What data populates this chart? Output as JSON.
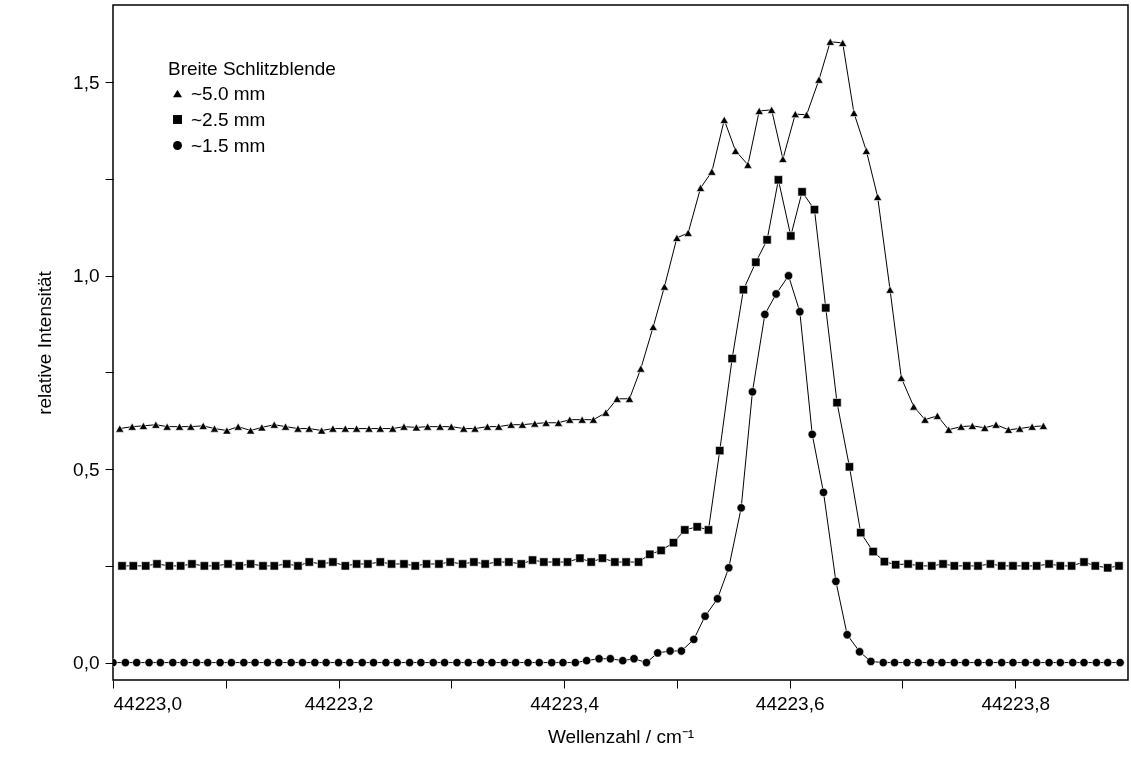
{
  "chart_data": {
    "type": "line",
    "xlabel": "Wellenzahl / cm⁻¹",
    "ylabel": "relative Intensität",
    "legend_title": "Breite Schlitzblende",
    "legend": "top left",
    "grid": false,
    "xlim": [
      44223.0,
      44223.9
    ],
    "ylim": [
      -0.045,
      1.7
    ],
    "xticks": [
      {
        "value": 44223.0,
        "label": "44223,0"
      },
      {
        "value": 44223.1,
        "label": null
      },
      {
        "value": 44223.2,
        "label": "44223,2"
      },
      {
        "value": 44223.3,
        "label": null
      },
      {
        "value": 44223.4,
        "label": "44223,4"
      },
      {
        "value": 44223.5,
        "label": null
      },
      {
        "value": 44223.6,
        "label": "44223,6"
      },
      {
        "value": 44223.7,
        "label": null
      },
      {
        "value": 44223.8,
        "label": "44223,8"
      }
    ],
    "yticks": [
      {
        "value": 0,
        "label": "0,0"
      },
      {
        "value": 0.25,
        "label": null
      },
      {
        "value": 0.5,
        "label": "0,5"
      },
      {
        "value": 0.75,
        "label": null
      },
      {
        "value": 1.0,
        "label": "1,0"
      },
      {
        "value": 1.25,
        "label": null
      },
      {
        "value": 1.5,
        "label": "1,5"
      }
    ],
    "series": [
      {
        "name": "~5.0 mm",
        "color": "#000000",
        "marker": "triangle",
        "line_style": "solid",
        "x": [
          44223.006,
          44223.017,
          44223.027,
          44223.038,
          44223.048,
          44223.059,
          44223.069,
          44223.08,
          44223.09,
          44223.101,
          44223.111,
          44223.122,
          44223.132,
          44223.143,
          44223.153,
          44223.164,
          44223.174,
          44223.185,
          44223.195,
          44223.206,
          44223.216,
          44223.227,
          44223.237,
          44223.248,
          44223.258,
          44223.269,
          44223.279,
          44223.29,
          44223.3,
          44223.311,
          44223.321,
          44223.332,
          44223.342,
          44223.353,
          44223.363,
          44223.374,
          44223.384,
          44223.395,
          44223.405,
          44223.416,
          44223.426,
          44223.437,
          44223.447,
          44223.458,
          44223.468,
          44223.479,
          44223.489,
          44223.5,
          44223.51,
          44223.521,
          44223.531,
          44223.542,
          44223.552,
          44223.563,
          44223.573,
          44223.584,
          44223.594,
          44223.605,
          44223.615,
          44223.626,
          44223.636,
          44223.647,
          44223.657,
          44223.668,
          44223.678,
          44223.689,
          44223.699,
          44223.71,
          44223.72,
          44223.731,
          44223.741,
          44223.752,
          44223.762,
          44223.773,
          44223.783,
          44223.794,
          44223.804,
          44223.815,
          44223.825
        ],
        "values": [
          0.605,
          0.61,
          0.612,
          0.615,
          0.61,
          0.61,
          0.61,
          0.612,
          0.605,
          0.6,
          0.61,
          0.6,
          0.608,
          0.615,
          0.61,
          0.605,
          0.605,
          0.6,
          0.605,
          0.605,
          0.605,
          0.605,
          0.605,
          0.605,
          0.61,
          0.608,
          0.61,
          0.61,
          0.61,
          0.605,
          0.605,
          0.61,
          0.61,
          0.615,
          0.615,
          0.618,
          0.62,
          0.62,
          0.628,
          0.628,
          0.628,
          0.646,
          0.682,
          0.682,
          0.76,
          0.868,
          0.972,
          1.098,
          1.111,
          1.227,
          1.269,
          1.403,
          1.323,
          1.287,
          1.426,
          1.429,
          1.302,
          1.418,
          1.416,
          1.507,
          1.605,
          1.602,
          1.421,
          1.323,
          1.204,
          0.964,
          0.736,
          0.662,
          0.628,
          0.638,
          0.602,
          0.61,
          0.612,
          0.607,
          0.615,
          0.602,
          0.605,
          0.61,
          0.612
        ]
      },
      {
        "name": "~2.5 mm",
        "color": "#000000",
        "marker": "square",
        "line_style": "solid",
        "x": [
          44223.008,
          44223.018,
          44223.029,
          44223.039,
          44223.05,
          44223.06,
          44223.07,
          44223.081,
          44223.091,
          44223.102,
          44223.112,
          44223.122,
          44223.133,
          44223.143,
          44223.154,
          44223.164,
          44223.174,
          44223.185,
          44223.195,
          44223.206,
          44223.216,
          44223.226,
          44223.237,
          44223.247,
          44223.258,
          44223.268,
          44223.278,
          44223.289,
          44223.299,
          44223.31,
          44223.32,
          44223.33,
          44223.341,
          44223.351,
          44223.362,
          44223.372,
          44223.382,
          44223.393,
          44223.403,
          44223.414,
          44223.424,
          44223.434,
          44223.445,
          44223.455,
          44223.466,
          44223.476,
          44223.486,
          44223.497,
          44223.507,
          44223.518,
          44223.528,
          44223.538,
          44223.549,
          44223.559,
          44223.57,
          44223.58,
          44223.59,
          44223.601,
          44223.611,
          44223.622,
          44223.632,
          44223.642,
          44223.653,
          44223.663,
          44223.674,
          44223.684,
          44223.694,
          44223.705,
          44223.715,
          44223.726,
          44223.736,
          44223.746,
          44223.757,
          44223.767,
          44223.778,
          44223.788,
          44223.798,
          44223.809,
          44223.819,
          44223.83,
          44223.84,
          44223.85,
          44223.861,
          44223.871,
          44223.882,
          44223.892
        ],
        "values": [
          0.25,
          0.25,
          0.25,
          0.255,
          0.25,
          0.25,
          0.255,
          0.25,
          0.25,
          0.255,
          0.25,
          0.255,
          0.25,
          0.25,
          0.255,
          0.25,
          0.26,
          0.255,
          0.26,
          0.25,
          0.255,
          0.255,
          0.26,
          0.255,
          0.255,
          0.25,
          0.255,
          0.255,
          0.26,
          0.255,
          0.26,
          0.255,
          0.26,
          0.26,
          0.255,
          0.265,
          0.26,
          0.26,
          0.26,
          0.27,
          0.26,
          0.27,
          0.26,
          0.26,
          0.26,
          0.28,
          0.29,
          0.31,
          0.343,
          0.351,
          0.343,
          0.548,
          0.786,
          0.964,
          1.035,
          1.093,
          1.248,
          1.103,
          1.217,
          1.171,
          0.917,
          0.672,
          0.506,
          0.336,
          0.287,
          0.261,
          0.253,
          0.255,
          0.25,
          0.25,
          0.255,
          0.25,
          0.25,
          0.25,
          0.255,
          0.25,
          0.25,
          0.25,
          0.25,
          0.255,
          0.25,
          0.25,
          0.26,
          0.25,
          0.245,
          0.25
        ]
      },
      {
        "name": "~1.5 mm",
        "color": "#000000",
        "marker": "circle",
        "line_style": "solid",
        "x": [
          44223.0,
          44223.011,
          44223.021,
          44223.032,
          44223.042,
          44223.053,
          44223.063,
          44223.074,
          44223.084,
          44223.095,
          44223.105,
          44223.116,
          44223.126,
          44223.137,
          44223.147,
          44223.158,
          44223.168,
          44223.179,
          44223.189,
          44223.2,
          44223.21,
          44223.221,
          44223.231,
          44223.242,
          44223.252,
          44223.263,
          44223.273,
          44223.284,
          44223.294,
          44223.305,
          44223.315,
          44223.326,
          44223.336,
          44223.347,
          44223.357,
          44223.368,
          44223.378,
          44223.389,
          44223.399,
          44223.41,
          44223.42,
          44223.431,
          44223.441,
          44223.452,
          44223.462,
          44223.473,
          44223.483,
          44223.494,
          44223.504,
          44223.515,
          44223.525,
          44223.536,
          44223.546,
          44223.557,
          44223.567,
          44223.578,
          44223.588,
          44223.599,
          44223.609,
          44223.62,
          44223.63,
          44223.641,
          44223.651,
          44223.662,
          44223.672,
          44223.683,
          44223.693,
          44223.704,
          44223.714,
          44223.725,
          44223.735,
          44223.746,
          44223.756,
          44223.767,
          44223.777,
          44223.788,
          44223.798,
          44223.809,
          44223.819,
          44223.83,
          44223.84,
          44223.851,
          44223.861,
          44223.872,
          44223.882,
          44223.893
        ],
        "values": [
          0,
          0,
          0,
          0,
          0,
          0,
          0,
          0,
          0,
          0,
          0,
          0,
          0,
          0,
          0,
          0,
          0,
          0,
          0,
          0,
          0,
          0,
          0,
          0,
          0,
          0,
          0,
          0,
          0,
          0,
          0,
          0,
          0,
          0,
          0,
          0,
          0,
          0,
          0,
          0,
          0.005,
          0.01,
          0.01,
          0.005,
          0.01,
          0,
          0.025,
          0.03,
          0.03,
          0.06,
          0.12,
          0.165,
          0.245,
          0.4,
          0.7,
          0.9,
          0.953,
          1.0,
          0.907,
          0.59,
          0.44,
          0.21,
          0.072,
          0.028,
          0.003,
          0,
          0,
          0,
          0,
          0,
          0,
          0,
          0,
          0,
          0,
          0,
          0,
          0,
          0,
          0,
          0,
          0,
          0,
          0,
          0,
          0
        ]
      }
    ]
  }
}
